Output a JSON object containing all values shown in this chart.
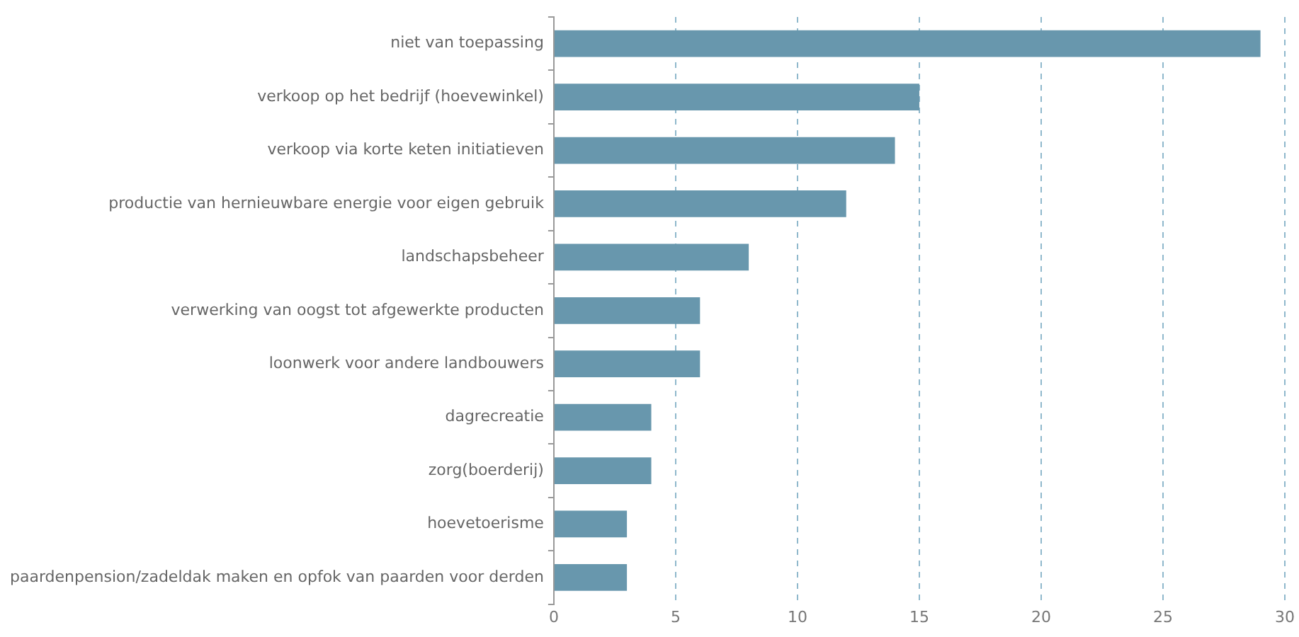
{
  "chart_data": {
    "type": "bar",
    "orientation": "horizontal",
    "categories": [
      "niet van toepassing",
      "verkoop op het bedrijf (hoevewinkel)",
      "verkoop via korte keten initiatieven",
      "productie van hernieuwbare energie voor eigen gebruik",
      "landschapsbeheer",
      "verwerking van oogst tot afgewerkte producten",
      "loonwerk voor andere landbouwers",
      "dagrecreatie",
      "zorg(boerderij)",
      "hoevetoerisme",
      "paardenpension/zadeldak maken en opfok van paarden voor derden"
    ],
    "values": [
      29,
      15,
      14,
      12,
      8,
      6,
      6,
      4,
      4,
      3,
      3
    ],
    "color": "#6897ad",
    "xlim": [
      0,
      30
    ],
    "xticks": [
      0,
      5,
      10,
      15,
      20,
      25,
      30
    ],
    "grid": "x",
    "legend": false
  }
}
